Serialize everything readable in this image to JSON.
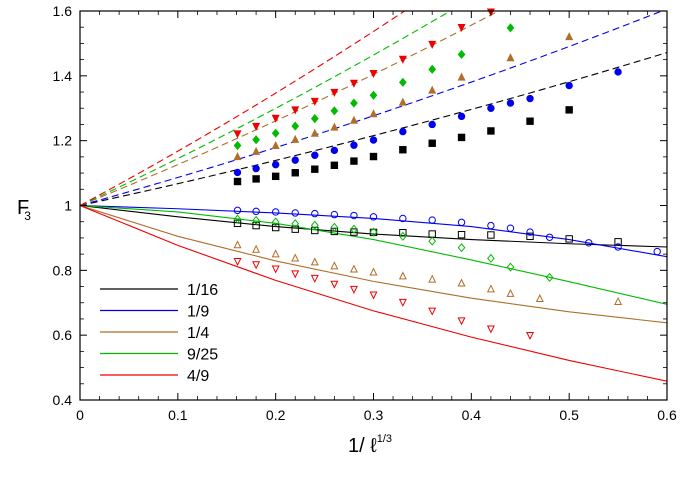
{
  "chart_data": {
    "type": "line",
    "xlabel": "1/ ℓ",
    "xlabel_exp": "1/3",
    "ylabel": "F",
    "ylabel_sub": "3",
    "xlim": [
      0,
      0.6
    ],
    "ylim": [
      0.4,
      1.6
    ],
    "xticks": [
      "0",
      "0.1",
      "0.2",
      "0.3",
      "0.4",
      "0.5",
      "0.6"
    ],
    "yticks": [
      "0.4",
      "0.6",
      "0.8",
      "1",
      "1.2",
      "1.4",
      "1.6"
    ],
    "xtick_values": [
      0,
      0.1,
      0.2,
      0.3,
      0.4,
      0.5,
      0.6
    ],
    "ytick_values": [
      0.4,
      0.6,
      0.8,
      1.0,
      1.2,
      1.4,
      1.6
    ],
    "legend_position": "bottom-left",
    "series": [
      {
        "name": "1/16",
        "color": "#000000",
        "marker": "square",
        "upper_slope": 0.65,
        "upper_points": [
          [
            0.161,
            1.074
          ],
          [
            0.18,
            1.082
          ],
          [
            0.2,
            1.09
          ],
          [
            0.22,
            1.101
          ],
          [
            0.24,
            1.112
          ],
          [
            0.26,
            1.124
          ],
          [
            0.28,
            1.137
          ],
          [
            0.3,
            1.151
          ],
          [
            0.33,
            1.172
          ],
          [
            0.36,
            1.192
          ],
          [
            0.39,
            1.21
          ],
          [
            0.42,
            1.23
          ],
          [
            0.46,
            1.26
          ],
          [
            0.5,
            1.295
          ]
        ],
        "lower_curve": [
          [
            0,
            1.0
          ],
          [
            0.1,
            0.965
          ],
          [
            0.2,
            0.935
          ],
          [
            0.3,
            0.912
          ],
          [
            0.4,
            0.895
          ],
          [
            0.5,
            0.882
          ],
          [
            0.6,
            0.872
          ]
        ],
        "lower_points": [
          [
            0.161,
            0.945
          ],
          [
            0.18,
            0.938
          ],
          [
            0.2,
            0.932
          ],
          [
            0.22,
            0.927
          ],
          [
            0.24,
            0.923
          ],
          [
            0.26,
            0.92
          ],
          [
            0.28,
            0.918
          ],
          [
            0.3,
            0.917
          ],
          [
            0.33,
            0.916
          ],
          [
            0.36,
            0.912
          ],
          [
            0.39,
            0.91
          ],
          [
            0.42,
            0.909
          ],
          [
            0.46,
            0.905
          ],
          [
            0.5,
            0.897
          ],
          [
            0.55,
            0.888
          ]
        ]
      },
      {
        "name": "1/9",
        "color": "#0000ee",
        "marker": "circle",
        "upper_slope": 0.835,
        "upper_points": [
          [
            0.161,
            1.102
          ],
          [
            0.18,
            1.114
          ],
          [
            0.2,
            1.126
          ],
          [
            0.22,
            1.14
          ],
          [
            0.24,
            1.155
          ],
          [
            0.26,
            1.17
          ],
          [
            0.28,
            1.186
          ],
          [
            0.3,
            1.202
          ],
          [
            0.33,
            1.228
          ],
          [
            0.36,
            1.25
          ],
          [
            0.39,
            1.275
          ],
          [
            0.42,
            1.3
          ],
          [
            0.44,
            1.316
          ],
          [
            0.46,
            1.33
          ],
          [
            0.5,
            1.37
          ],
          [
            0.55,
            1.412
          ]
        ],
        "lower_curve": [
          [
            0,
            1.0
          ],
          [
            0.1,
            0.99
          ],
          [
            0.2,
            0.977
          ],
          [
            0.3,
            0.96
          ],
          [
            0.4,
            0.935
          ],
          [
            0.5,
            0.895
          ],
          [
            0.6,
            0.842
          ]
        ],
        "lower_points": [
          [
            0.161,
            0.985
          ],
          [
            0.18,
            0.982
          ],
          [
            0.2,
            0.98
          ],
          [
            0.22,
            0.977
          ],
          [
            0.24,
            0.975
          ],
          [
            0.26,
            0.972
          ],
          [
            0.28,
            0.969
          ],
          [
            0.3,
            0.965
          ],
          [
            0.33,
            0.96
          ],
          [
            0.36,
            0.955
          ],
          [
            0.39,
            0.948
          ],
          [
            0.42,
            0.938
          ],
          [
            0.44,
            0.93
          ],
          [
            0.46,
            0.918
          ],
          [
            0.48,
            0.902
          ],
          [
            0.52,
            0.885
          ],
          [
            0.55,
            0.872
          ],
          [
            0.59,
            0.858
          ]
        ]
      },
      {
        "name": "1/4",
        "color": "#b06e28",
        "marker": "triangle-up",
        "upper_slope": 1.22,
        "upper_points": [
          [
            0.161,
            1.15
          ],
          [
            0.18,
            1.166
          ],
          [
            0.2,
            1.184
          ],
          [
            0.22,
            1.203
          ],
          [
            0.24,
            1.222
          ],
          [
            0.26,
            1.241
          ],
          [
            0.28,
            1.262
          ],
          [
            0.3,
            1.282
          ],
          [
            0.33,
            1.318
          ],
          [
            0.36,
            1.355
          ],
          [
            0.39,
            1.395
          ],
          [
            0.44,
            1.455
          ],
          [
            0.5,
            1.52
          ]
        ],
        "lower_curve": [
          [
            0,
            1.0
          ],
          [
            0.1,
            0.905
          ],
          [
            0.2,
            0.829
          ],
          [
            0.3,
            0.766
          ],
          [
            0.4,
            0.714
          ],
          [
            0.5,
            0.672
          ],
          [
            0.6,
            0.638
          ]
        ],
        "lower_points": [
          [
            0.161,
            0.878
          ],
          [
            0.18,
            0.864
          ],
          [
            0.2,
            0.85
          ],
          [
            0.22,
            0.837
          ],
          [
            0.24,
            0.825
          ],
          [
            0.26,
            0.813
          ],
          [
            0.28,
            0.803
          ],
          [
            0.3,
            0.794
          ],
          [
            0.33,
            0.782
          ],
          [
            0.36,
            0.772
          ],
          [
            0.39,
            0.76
          ],
          [
            0.42,
            0.742
          ],
          [
            0.44,
            0.728
          ],
          [
            0.47,
            0.712
          ],
          [
            0.55,
            0.703
          ]
        ]
      },
      {
        "name": "9/25",
        "color": "#00bb00",
        "marker": "diamond",
        "upper_slope": 1.4,
        "upper_points": [
          [
            0.161,
            1.185
          ],
          [
            0.18,
            1.203
          ],
          [
            0.2,
            1.223
          ],
          [
            0.22,
            1.245
          ],
          [
            0.24,
            1.268
          ],
          [
            0.26,
            1.292
          ],
          [
            0.28,
            1.316
          ],
          [
            0.3,
            1.34
          ],
          [
            0.33,
            1.38
          ],
          [
            0.36,
            1.42
          ],
          [
            0.39,
            1.466
          ],
          [
            0.44,
            1.548
          ]
        ],
        "lower_curve": [
          [
            0,
            1.0
          ],
          [
            0.1,
            0.98
          ],
          [
            0.2,
            0.945
          ],
          [
            0.3,
            0.895
          ],
          [
            0.4,
            0.832
          ],
          [
            0.5,
            0.765
          ],
          [
            0.6,
            0.695
          ]
        ],
        "lower_points": [
          [
            0.161,
            0.958
          ],
          [
            0.18,
            0.954
          ],
          [
            0.2,
            0.949
          ],
          [
            0.22,
            0.944
          ],
          [
            0.24,
            0.939
          ],
          [
            0.26,
            0.933
          ],
          [
            0.28,
            0.927
          ],
          [
            0.3,
            0.918
          ],
          [
            0.33,
            0.905
          ],
          [
            0.36,
            0.89
          ],
          [
            0.39,
            0.87
          ],
          [
            0.42,
            0.837
          ],
          [
            0.44,
            0.81
          ],
          [
            0.48,
            0.778
          ]
        ]
      },
      {
        "name": "4/9",
        "color": "#ee0000",
        "marker": "triangle-down",
        "upper_slope": 1.62,
        "upper_points": [
          [
            0.161,
            1.222
          ],
          [
            0.18,
            1.245
          ],
          [
            0.2,
            1.27
          ],
          [
            0.22,
            1.296
          ],
          [
            0.24,
            1.322
          ],
          [
            0.26,
            1.35
          ],
          [
            0.28,
            1.378
          ],
          [
            0.3,
            1.408
          ],
          [
            0.33,
            1.452
          ],
          [
            0.36,
            1.498
          ],
          [
            0.39,
            1.55
          ],
          [
            0.42,
            1.598
          ]
        ],
        "lower_curve": [
          [
            0,
            1.0
          ],
          [
            0.1,
            0.877
          ],
          [
            0.2,
            0.769
          ],
          [
            0.3,
            0.675
          ],
          [
            0.4,
            0.594
          ],
          [
            0.5,
            0.522
          ],
          [
            0.6,
            0.458
          ]
        ],
        "lower_points": [
          [
            0.161,
            0.828
          ],
          [
            0.18,
            0.818
          ],
          [
            0.2,
            0.805
          ],
          [
            0.22,
            0.79
          ],
          [
            0.24,
            0.776
          ],
          [
            0.26,
            0.758
          ],
          [
            0.28,
            0.742
          ],
          [
            0.3,
            0.725
          ],
          [
            0.33,
            0.702
          ],
          [
            0.36,
            0.675
          ],
          [
            0.39,
            0.645
          ],
          [
            0.42,
            0.62
          ],
          [
            0.46,
            0.6
          ]
        ]
      }
    ]
  }
}
